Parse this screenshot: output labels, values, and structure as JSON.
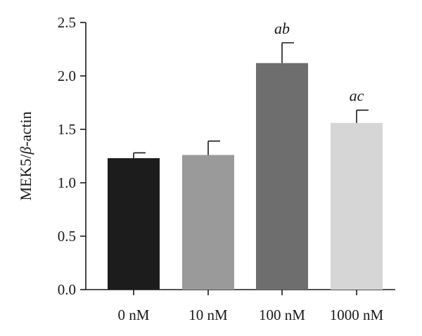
{
  "chart_data": {
    "type": "bar",
    "title": "",
    "xlabel": "",
    "ylabel_prefix": "MEK5/",
    "ylabel_symbol": "β",
    "ylabel_suffix": "-actin",
    "ylim": [
      0,
      2.5
    ],
    "yticks": [
      0.0,
      0.5,
      1.0,
      1.5,
      2.0,
      2.5
    ],
    "ytick_labels": [
      "0.0",
      "0.5",
      "1.0",
      "1.5",
      "2.0",
      "2.5"
    ],
    "grid": false,
    "categories": [
      "0 nM",
      "10 nM",
      "100 nM",
      "1000 nM"
    ],
    "values": [
      1.23,
      1.26,
      2.12,
      1.56
    ],
    "errors": [
      0.05,
      0.13,
      0.19,
      0.12
    ],
    "annotations": [
      "",
      "",
      "ab",
      "ac"
    ],
    "colors": [
      "#1c1c1c",
      "#9a9a9a",
      "#6e6e6e",
      "#d6d6d6"
    ]
  }
}
